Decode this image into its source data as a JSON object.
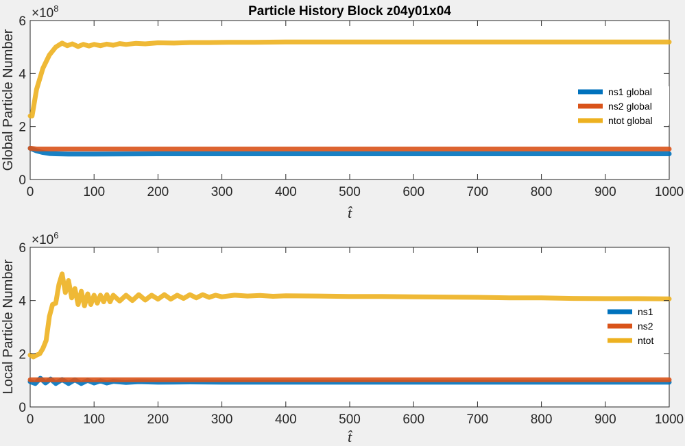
{
  "title": "Particle History Block z04y01x04",
  "colors": {
    "ns1": "#0072BD",
    "ns2": "#D95319",
    "ntot": "#EDB120",
    "axes": "#262626"
  },
  "chart_data": [
    {
      "type": "line",
      "ylabel": "Global Particle Number",
      "xlabel": "t̂",
      "exponent_label": "×10",
      "exponent": "8",
      "xlim": [
        0,
        1000
      ],
      "ylim": [
        0,
        6
      ],
      "xticks": [
        "0",
        "100",
        "200",
        "300",
        "400",
        "500",
        "600",
        "700",
        "800",
        "900",
        "1000"
      ],
      "yticks": [
        "0",
        "2",
        "4",
        "6"
      ],
      "legend_position": "right",
      "series": [
        {
          "name": "ns1 global",
          "color": "#0072BD",
          "x": [
            0,
            10,
            20,
            30,
            40,
            60,
            100,
            200,
            400,
            600,
            800,
            1000
          ],
          "y": [
            1.18,
            1.08,
            1.02,
            0.98,
            0.97,
            0.96,
            0.96,
            0.97,
            0.97,
            0.97,
            0.97,
            0.97
          ]
        },
        {
          "name": "ns2 global",
          "color": "#D95319",
          "x": [
            0,
            10,
            20,
            40,
            100,
            200,
            400,
            600,
            800,
            1000
          ],
          "y": [
            1.18,
            1.15,
            1.15,
            1.15,
            1.15,
            1.15,
            1.15,
            1.15,
            1.15,
            1.15
          ]
        },
        {
          "name": "ntot global",
          "color": "#EDB120",
          "x": [
            0,
            3,
            10,
            20,
            30,
            40,
            50,
            58,
            66,
            75,
            83,
            92,
            100,
            110,
            120,
            130,
            140,
            150,
            165,
            180,
            200,
            225,
            250,
            280,
            310,
            350,
            400,
            450,
            500,
            600,
            700,
            800,
            900,
            1000
          ],
          "y": [
            2.4,
            2.4,
            3.4,
            4.2,
            4.7,
            5.0,
            5.15,
            5.05,
            5.12,
            5.02,
            5.1,
            5.04,
            5.1,
            5.05,
            5.11,
            5.07,
            5.13,
            5.1,
            5.14,
            5.12,
            5.16,
            5.15,
            5.17,
            5.17,
            5.18,
            5.18,
            5.19,
            5.19,
            5.19,
            5.19,
            5.19,
            5.19,
            5.19,
            5.19
          ]
        }
      ]
    },
    {
      "type": "line",
      "ylabel": "Local Particle Number",
      "xlabel": "t̂",
      "exponent_label": "×10",
      "exponent": "6",
      "xlim": [
        0,
        1000
      ],
      "ylim": [
        0,
        6
      ],
      "xticks": [
        "0",
        "100",
        "200",
        "300",
        "400",
        "500",
        "600",
        "700",
        "800",
        "900",
        "1000"
      ],
      "yticks": [
        "0",
        "2",
        "4",
        "6"
      ],
      "legend_position": "right",
      "series": [
        {
          "name": "ns1",
          "color": "#0072BD",
          "x": [
            0,
            8,
            16,
            24,
            32,
            40,
            50,
            60,
            70,
            80,
            90,
            100,
            110,
            120,
            130,
            150,
            170,
            200,
            250,
            300,
            400,
            500,
            600,
            700,
            800,
            900,
            1000
          ],
          "y": [
            0.95,
            0.88,
            1.08,
            0.9,
            1.05,
            0.88,
            1.03,
            0.88,
            1.02,
            0.88,
            1.0,
            0.9,
            0.98,
            0.9,
            0.96,
            0.92,
            0.95,
            0.93,
            0.94,
            0.93,
            0.93,
            0.93,
            0.93,
            0.93,
            0.93,
            0.93,
            0.93
          ]
        },
        {
          "name": "ns2",
          "color": "#D95319",
          "x": [
            0,
            20,
            50,
            100,
            200,
            400,
            600,
            800,
            1000
          ],
          "y": [
            1.02,
            1.02,
            1.02,
            1.02,
            1.02,
            1.02,
            1.02,
            1.02,
            1.02
          ]
        },
        {
          "name": "ntot",
          "color": "#EDB120",
          "x": [
            0,
            5,
            10,
            15,
            20,
            25,
            30,
            35,
            40,
            45,
            50,
            55,
            60,
            65,
            70,
            75,
            80,
            85,
            90,
            95,
            100,
            105,
            110,
            115,
            120,
            125,
            130,
            140,
            150,
            160,
            170,
            180,
            190,
            200,
            210,
            220,
            230,
            240,
            250,
            260,
            270,
            280,
            290,
            300,
            320,
            340,
            360,
            380,
            400,
            450,
            500,
            550,
            600,
            650,
            700,
            750,
            800,
            850,
            900,
            950,
            1000
          ],
          "y": [
            1.95,
            1.88,
            1.95,
            2.0,
            2.2,
            2.5,
            3.4,
            3.85,
            3.9,
            4.6,
            5.0,
            4.3,
            4.75,
            4.1,
            4.45,
            3.85,
            4.35,
            3.8,
            4.25,
            3.85,
            4.2,
            3.9,
            4.2,
            3.95,
            4.22,
            3.95,
            4.2,
            3.98,
            4.2,
            4.0,
            4.22,
            4.02,
            4.2,
            4.05,
            4.22,
            4.05,
            4.2,
            4.08,
            4.22,
            4.1,
            4.22,
            4.12,
            4.2,
            4.14,
            4.2,
            4.17,
            4.19,
            4.16,
            4.18,
            4.17,
            4.15,
            4.15,
            4.14,
            4.13,
            4.12,
            4.1,
            4.1,
            4.08,
            4.07,
            4.07,
            4.06
          ]
        }
      ]
    }
  ]
}
